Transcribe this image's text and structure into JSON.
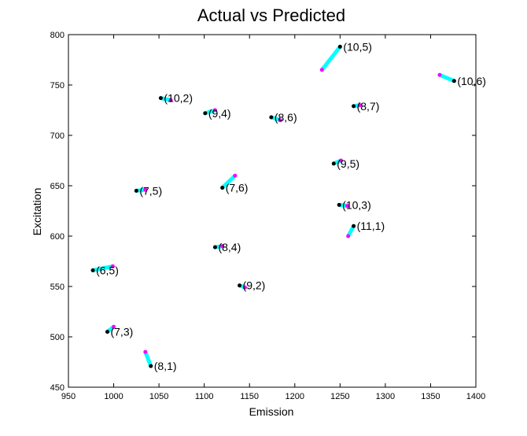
{
  "chart_data": {
    "type": "scatter",
    "title": "Actual vs Predicted",
    "xlabel": "Emission",
    "ylabel": "Excitation",
    "xlim": [
      950,
      1400
    ],
    "ylim": [
      450,
      800
    ],
    "xticks": [
      950,
      1000,
      1050,
      1100,
      1150,
      1200,
      1250,
      1300,
      1350,
      1400
    ],
    "yticks": [
      450,
      500,
      550,
      600,
      650,
      700,
      750,
      800
    ],
    "grid": false,
    "colors": {
      "actual": "#000000",
      "predicted": "#ff00ff",
      "connector": "#00ffff"
    },
    "points": [
      {
        "label": "(10,5)",
        "actual": [
          1250,
          788
        ],
        "predicted": [
          1230,
          765
        ]
      },
      {
        "label": "(10,6)",
        "actual": [
          1376,
          754
        ],
        "predicted": [
          1360,
          760
        ]
      },
      {
        "label": "(10,2)",
        "actual": [
          1052,
          737
        ],
        "predicted": [
          1063,
          735
        ]
      },
      {
        "label": "(8,7)",
        "actual": [
          1265,
          729
        ],
        "predicted": [
          1272,
          730
        ]
      },
      {
        "label": "(9,4)",
        "actual": [
          1101,
          722
        ],
        "predicted": [
          1112,
          725
        ]
      },
      {
        "label": "(8,6)",
        "actual": [
          1174,
          718
        ],
        "predicted": [
          1184,
          715
        ]
      },
      {
        "label": "(9,5)",
        "actual": [
          1243,
          672
        ],
        "predicted": [
          1251,
          675
        ]
      },
      {
        "label": "(7,5)",
        "actual": [
          1025,
          645
        ],
        "predicted": [
          1035,
          646
        ]
      },
      {
        "label": "(7,6)",
        "actual": [
          1120,
          648
        ],
        "predicted": [
          1134,
          660
        ]
      },
      {
        "label": "(10,3)",
        "actual": [
          1249,
          631
        ],
        "predicted": [
          1258,
          630
        ]
      },
      {
        "label": "(11,1)",
        "actual": [
          1265,
          610
        ],
        "predicted": [
          1259,
          600
        ]
      },
      {
        "label": "(8,4)",
        "actual": [
          1112,
          589
        ],
        "predicted": [
          1120,
          590
        ]
      },
      {
        "label": "(6,5)",
        "actual": [
          977,
          566
        ],
        "predicted": [
          999,
          570
        ]
      },
      {
        "label": "(9,2)",
        "actual": [
          1139,
          551
        ],
        "predicted": [
          1145,
          549
        ]
      },
      {
        "label": "(7,3)",
        "actual": [
          993,
          505
        ],
        "predicted": [
          1000,
          510
        ]
      },
      {
        "label": "(8,1)",
        "actual": [
          1041,
          471
        ],
        "predicted": [
          1035,
          485
        ]
      }
    ]
  }
}
